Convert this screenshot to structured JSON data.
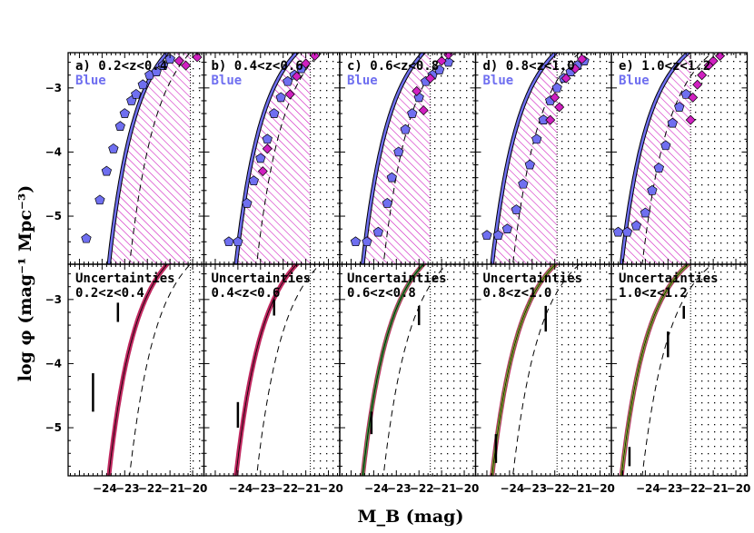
{
  "chart_data": {
    "type": "scatter",
    "ylabel": "log φ (mag⁻¹ Mpc⁻³)",
    "xlabel": "M_B (mag)",
    "xlim": [
      -25.5,
      -19.5
    ],
    "ylim": [
      -5.75,
      -2.45
    ],
    "xticks": [
      "−24",
      "−23",
      "−22",
      "−21",
      "−20"
    ],
    "yticks": [
      "−3",
      "−4",
      "−5"
    ],
    "colors": {
      "blue": "#6f6ff0",
      "magenta": "#d020c0",
      "band": "#c02860",
      "band2": "#40a040",
      "band3": "#e0d020"
    },
    "top_panels": [
      {
        "label": "a) 0.2<z<0.4",
        "sublabel": "Blue",
        "mstar": -21.5,
        "phistar": -2.55,
        "limit": -20.1,
        "blue_points": [
          [
            -24.7,
            -5.35
          ],
          [
            -24.1,
            -4.75
          ],
          [
            -23.8,
            -4.3
          ],
          [
            -23.5,
            -3.95
          ],
          [
            -23.2,
            -3.6
          ],
          [
            -23.0,
            -3.4
          ],
          [
            -22.7,
            -3.2
          ],
          [
            -22.5,
            -3.1
          ],
          [
            -22.2,
            -2.95
          ],
          [
            -21.9,
            -2.8
          ],
          [
            -21.6,
            -2.75
          ],
          [
            -21.3,
            -2.65
          ],
          [
            -21.0,
            -2.55
          ]
        ],
        "magenta_points": [
          [
            -20.3,
            -2.65
          ],
          [
            -20.6,
            -2.58
          ],
          [
            -19.8,
            -2.52
          ]
        ]
      },
      {
        "label": "b) 0.4<z<0.6",
        "sublabel": "Blue",
        "mstar": -21.9,
        "phistar": -2.6,
        "limit": -20.8,
        "blue_points": [
          [
            -24.4,
            -5.4
          ],
          [
            -24.0,
            -5.4
          ],
          [
            -23.6,
            -4.8
          ],
          [
            -23.3,
            -4.45
          ],
          [
            -23.0,
            -4.1
          ],
          [
            -22.7,
            -3.8
          ],
          [
            -22.4,
            -3.4
          ],
          [
            -22.1,
            -3.15
          ],
          [
            -21.8,
            -2.9
          ],
          [
            -21.5,
            -2.8
          ],
          [
            -21.2,
            -2.7
          ]
        ],
        "magenta_points": [
          [
            -22.9,
            -4.3
          ],
          [
            -22.7,
            -3.95
          ],
          [
            -21.7,
            -3.1
          ],
          [
            -21.4,
            -2.82
          ],
          [
            -21.0,
            -2.62
          ],
          [
            -20.6,
            -2.5
          ]
        ]
      },
      {
        "label": "c) 0.6<z<0.8",
        "sublabel": "Blue",
        "mstar": -22.3,
        "phistar": -2.6,
        "limit": -21.5,
        "blue_points": [
          [
            -24.8,
            -5.4
          ],
          [
            -24.3,
            -5.4
          ],
          [
            -23.8,
            -5.25
          ],
          [
            -23.4,
            -4.8
          ],
          [
            -23.2,
            -4.4
          ],
          [
            -22.9,
            -4.0
          ],
          [
            -22.6,
            -3.65
          ],
          [
            -22.3,
            -3.4
          ],
          [
            -22.0,
            -3.15
          ],
          [
            -21.7,
            -2.9
          ],
          [
            -21.4,
            -2.8
          ],
          [
            -21.1,
            -2.72
          ],
          [
            -20.7,
            -2.6
          ]
        ],
        "magenta_points": [
          [
            -22.1,
            -3.05
          ],
          [
            -21.8,
            -3.35
          ],
          [
            -21.5,
            -2.85
          ],
          [
            -21.0,
            -2.58
          ],
          [
            -20.7,
            -2.48
          ]
        ]
      },
      {
        "label": "d) 0.8<z<1.0",
        "sublabel": "Blue",
        "mstar": -22.6,
        "phistar": -2.65,
        "limit": -21.9,
        "blue_points": [
          [
            -25.0,
            -5.3
          ],
          [
            -24.5,
            -5.3
          ],
          [
            -24.1,
            -5.2
          ],
          [
            -23.7,
            -4.9
          ],
          [
            -23.4,
            -4.5
          ],
          [
            -23.1,
            -4.2
          ],
          [
            -22.8,
            -3.8
          ],
          [
            -22.5,
            -3.5
          ],
          [
            -22.2,
            -3.2
          ],
          [
            -21.9,
            -3.0
          ],
          [
            -21.6,
            -2.85
          ],
          [
            -21.3,
            -2.75
          ],
          [
            -21.0,
            -2.65
          ],
          [
            -20.7,
            -2.58
          ]
        ],
        "magenta_points": [
          [
            -22.2,
            -3.5
          ],
          [
            -22.0,
            -3.15
          ],
          [
            -21.8,
            -3.3
          ],
          [
            -21.5,
            -2.85
          ],
          [
            -21.1,
            -2.7
          ],
          [
            -20.8,
            -2.55
          ]
        ]
      },
      {
        "label": "e) 1.0<z<1.2",
        "sublabel": "Blue",
        "mstar": -22.9,
        "phistar": -2.7,
        "limit": -22.0,
        "blue_points": [
          [
            -25.2,
            -5.25
          ],
          [
            -24.8,
            -5.25
          ],
          [
            -24.4,
            -5.15
          ],
          [
            -24.0,
            -4.95
          ],
          [
            -23.7,
            -4.6
          ],
          [
            -23.4,
            -4.25
          ],
          [
            -23.1,
            -3.9
          ],
          [
            -22.8,
            -3.55
          ],
          [
            -22.5,
            -3.3
          ],
          [
            -22.2,
            -3.1
          ]
        ],
        "magenta_points": [
          [
            -22.0,
            -3.5
          ],
          [
            -21.9,
            -3.15
          ],
          [
            -21.7,
            -2.95
          ],
          [
            -21.5,
            -2.8
          ],
          [
            -21.2,
            -2.65
          ],
          [
            -21.0,
            -2.58
          ],
          [
            -20.7,
            -2.5
          ]
        ]
      }
    ],
    "bottom_panels": [
      {
        "label": "Uncertainties",
        "sublabel": "0.2<z<0.4",
        "mstar": -21.5,
        "phistar": -2.55,
        "limit": -20.1,
        "bands": 1,
        "errbars": [
          [
            -24.4,
            -4.75,
            -4.15
          ],
          [
            -23.3,
            -3.35,
            -3.05
          ]
        ]
      },
      {
        "label": "Uncertainties",
        "sublabel": "0.4<z<0.6",
        "mstar": -21.9,
        "phistar": -2.6,
        "limit": -20.8,
        "bands": 1,
        "errbars": [
          [
            -24.0,
            -5.0,
            -4.6
          ],
          [
            -22.4,
            -3.25,
            -3.0
          ]
        ]
      },
      {
        "label": "Uncertainties",
        "sublabel": "0.6<z<0.8",
        "mstar": -22.3,
        "phistar": -2.6,
        "limit": -21.5,
        "bands": 2,
        "errbars": [
          [
            -24.1,
            -5.1,
            -4.75
          ],
          [
            -22.0,
            -3.4,
            -3.1
          ]
        ]
      },
      {
        "label": "Uncertainties",
        "sublabel": "0.8<z<1.0",
        "mstar": -22.6,
        "phistar": -2.65,
        "limit": -21.9,
        "bands": 3,
        "errbars": [
          [
            -24.6,
            -5.55,
            -5.1
          ],
          [
            -22.4,
            -3.5,
            -3.1
          ]
        ]
      },
      {
        "label": "Uncertainties",
        "sublabel": "1.0<z<1.2",
        "mstar": -22.9,
        "phistar": -2.7,
        "limit": -22.0,
        "bands": 3,
        "errbars": [
          [
            -24.7,
            -5.6,
            -5.3
          ],
          [
            -23.0,
            -3.9,
            -3.5
          ],
          [
            -22.3,
            -3.3,
            -3.1
          ]
        ]
      }
    ]
  }
}
